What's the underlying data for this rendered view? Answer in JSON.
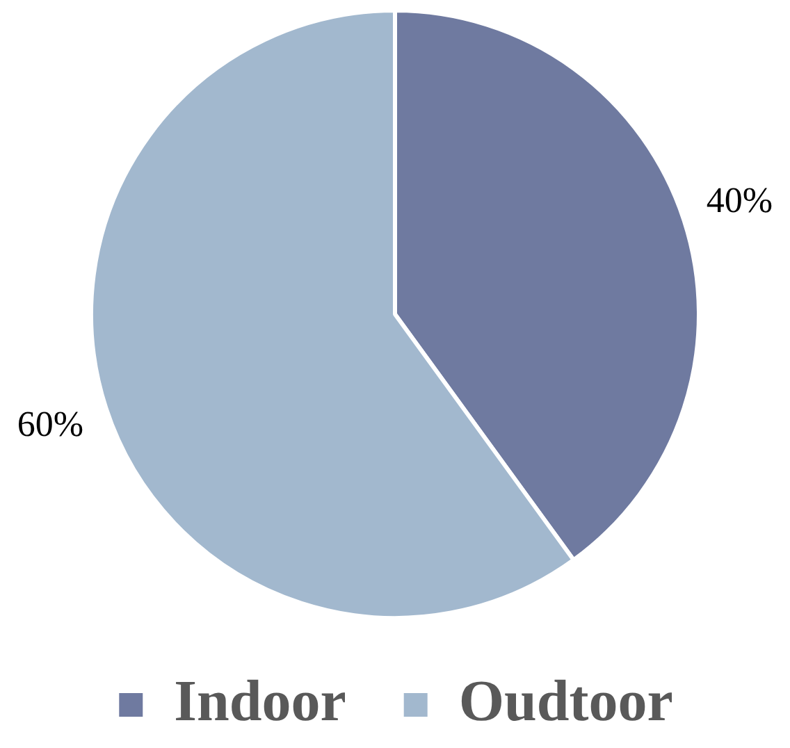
{
  "chart_data": {
    "type": "pie",
    "categories": [
      "Indoor",
      "Oudtoor"
    ],
    "values": [
      40,
      60
    ],
    "colors": [
      "#6f7aa0",
      "#a2b8ce"
    ],
    "value_labels": [
      "40%",
      "60%"
    ],
    "legend": "bottom"
  }
}
